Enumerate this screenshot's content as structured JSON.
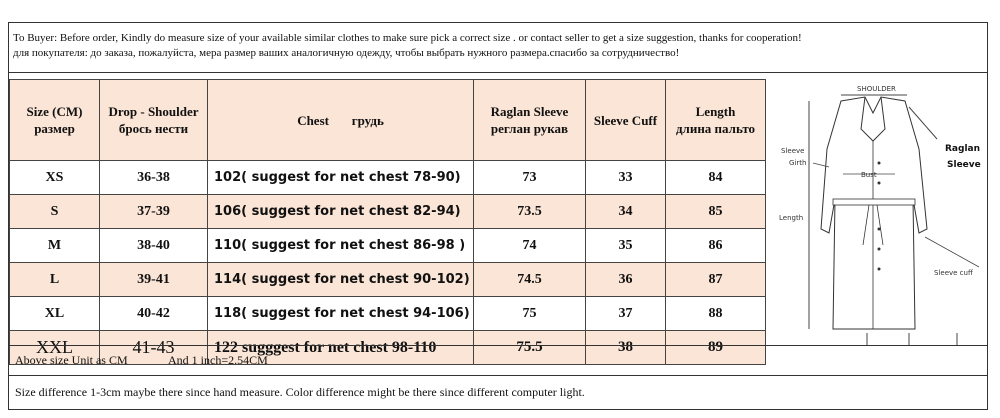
{
  "notice": {
    "english": "To Buyer:  Before order, Kindly do measure size of your available similar clothes to make sure pick a correct size . or contact seller to get a size suggestion, thanks for cooperation!",
    "russian": "для покупателя: до заказа, пожалуйста, мера размер ваших аналогичную одежду, чтобы выбрать нужного размера.спасибо за сотрудничество!"
  },
  "table": {
    "headers": {
      "size_en": "Size (CM)",
      "size_ru": "размер",
      "shoulder_en": "Drop - Shoulder",
      "shoulder_ru": "брось нести",
      "chest_en": "Chest",
      "chest_ru": "грудь",
      "raglan_en": "Raglan Sleeve",
      "raglan_ru": "реглан рукав",
      "cuff_en": "Sleeve Cuff",
      "length_en": "Length",
      "length_ru": "длина пальто"
    },
    "rows": [
      {
        "size": "XS",
        "shoulder": "36-38",
        "chest": "102( suggest for net chest 78-90)",
        "raglan": "73",
        "cuff": "33",
        "length": "84"
      },
      {
        "size": "S",
        "shoulder": "37-39",
        "chest": "106( suggest for net chest 82-94)",
        "raglan": "73.5",
        "cuff": "34",
        "length": "85"
      },
      {
        "size": "M",
        "shoulder": "38-40",
        "chest": "110( suggest for net chest 86-98 )",
        "raglan": "74",
        "cuff": "35",
        "length": "86"
      },
      {
        "size": "L",
        "shoulder": "39-41",
        "chest": "114( suggest for net chest 90-102)",
        "raglan": "74.5",
        "cuff": "36",
        "length": "87"
      },
      {
        "size": "XL",
        "shoulder": "40-42",
        "chest": "118( suggest for net chest 94-106)",
        "raglan": "75",
        "cuff": "37",
        "length": "88"
      },
      {
        "size": "XXL",
        "shoulder": "41-43",
        "chest": "122 sugggest for net chest 98-110",
        "raglan": "75.5",
        "cuff": "38",
        "length": "89"
      }
    ]
  },
  "diagram": {
    "shoulder": "SHOULDER",
    "sleeve_girth_1": "Sleeve",
    "sleeve_girth_2": "Girth",
    "bust": "Bust",
    "raglan_1": "Raglan",
    "raglan_2": "Sleeve",
    "length": "Length",
    "cuff": "Sleeve cuff"
  },
  "footer": {
    "unit": "Above size Unit as CM",
    "inch": "And 1 inch=2.54CM",
    "difference": "Size difference 1-3cm maybe there since hand measure.  Color difference might be there since different computer light."
  },
  "colors": {
    "header_fill": "#fbe5d6",
    "border": "#444444"
  }
}
